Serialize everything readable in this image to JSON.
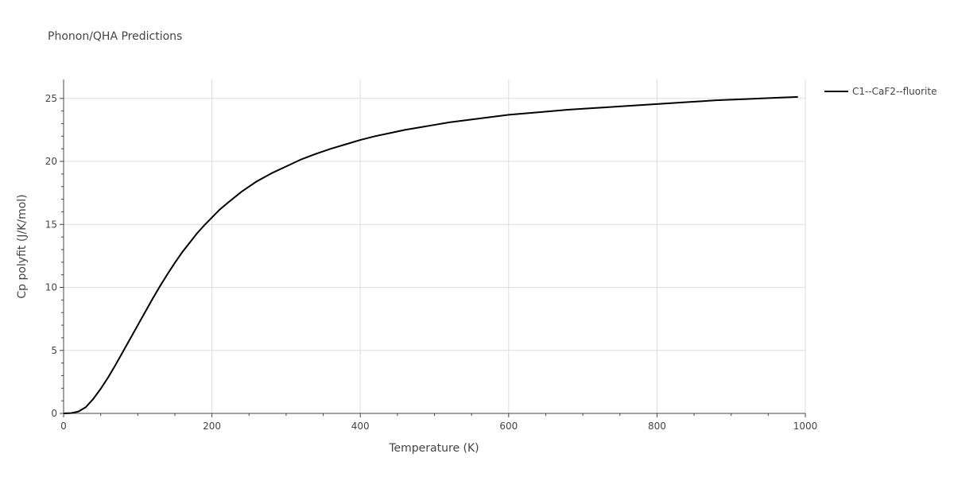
{
  "chart_data": {
    "type": "line",
    "title": "Phonon/QHA Predictions",
    "xlabel": "Temperature (K)",
    "ylabel": "Cp polyfit (J/K/mol)",
    "xlim": [
      0,
      1000
    ],
    "ylim": [
      0,
      26.5
    ],
    "xticks": [
      0,
      200,
      400,
      600,
      800,
      1000
    ],
    "yticks": [
      0,
      5,
      10,
      15,
      20,
      25
    ],
    "grid": true,
    "legend_position": "top-right",
    "line_color": "#000000",
    "series": [
      {
        "name": "C1--CaF2--fluorite",
        "x": [
          0,
          10,
          20,
          30,
          40,
          50,
          60,
          70,
          80,
          90,
          100,
          110,
          120,
          130,
          140,
          150,
          160,
          170,
          180,
          190,
          200,
          210,
          220,
          240,
          260,
          280,
          300,
          320,
          340,
          360,
          380,
          400,
          420,
          440,
          460,
          480,
          500,
          520,
          540,
          560,
          580,
          600,
          640,
          680,
          720,
          760,
          800,
          840,
          880,
          920,
          960,
          990
        ],
        "y": [
          0,
          0.02,
          0.15,
          0.5,
          1.15,
          1.95,
          2.85,
          3.85,
          4.9,
          5.95,
          7.0,
          8.05,
          9.1,
          10.1,
          11.05,
          11.95,
          12.8,
          13.55,
          14.3,
          14.95,
          15.55,
          16.15,
          16.65,
          17.6,
          18.4,
          19.05,
          19.6,
          20.15,
          20.6,
          21.0,
          21.35,
          21.7,
          22.0,
          22.25,
          22.5,
          22.7,
          22.9,
          23.1,
          23.25,
          23.4,
          23.55,
          23.7,
          23.9,
          24.1,
          24.25,
          24.4,
          24.55,
          24.7,
          24.85,
          24.95,
          25.05,
          25.12
        ]
      }
    ]
  }
}
